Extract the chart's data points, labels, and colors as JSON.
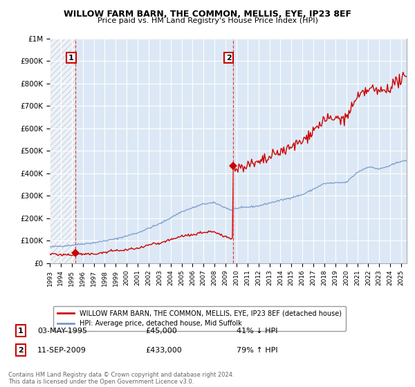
{
  "title": "WILLOW FARM BARN, THE COMMON, MELLIS, EYE, IP23 8EF",
  "subtitle": "Price paid vs. HM Land Registry's House Price Index (HPI)",
  "ylim": [
    0,
    1000000
  ],
  "yticks": [
    0,
    100000,
    200000,
    300000,
    400000,
    500000,
    600000,
    700000,
    800000,
    900000,
    1000000
  ],
  "ytick_labels": [
    "£0",
    "£100K",
    "£200K",
    "£300K",
    "£400K",
    "£500K",
    "£600K",
    "£700K",
    "£800K",
    "£900K",
    "£1M"
  ],
  "sale1_year": 1995.35,
  "sale1_price": 45000,
  "sale1_label": "1",
  "sale1_date": "03-MAY-1995",
  "sale1_hpi_str": "£45,000",
  "sale1_hpi_pct": "41% ↓ HPI",
  "sale2_year": 2009.7,
  "sale2_price": 433000,
  "sale2_label": "2",
  "sale2_date": "11-SEP-2009",
  "sale2_hpi_str": "£433,000",
  "sale2_hpi_pct": "79% ↑ HPI",
  "house_color": "#cc0000",
  "hpi_color": "#7799cc",
  "grid_color": "#cccccc",
  "hatch_color": "#dddddd",
  "bg_plot": "#dce8f5",
  "background_color": "#ffffff",
  "legend_house": "WILLOW FARM BARN, THE COMMON, MELLIS, EYE, IP23 8EF (detached house)",
  "legend_hpi": "HPI: Average price, detached house, Mid Suffolk",
  "footnote": "Contains HM Land Registry data © Crown copyright and database right 2024.\nThis data is licensed under the Open Government Licence v3.0.",
  "xmin": 1993,
  "xmax": 2025.5
}
